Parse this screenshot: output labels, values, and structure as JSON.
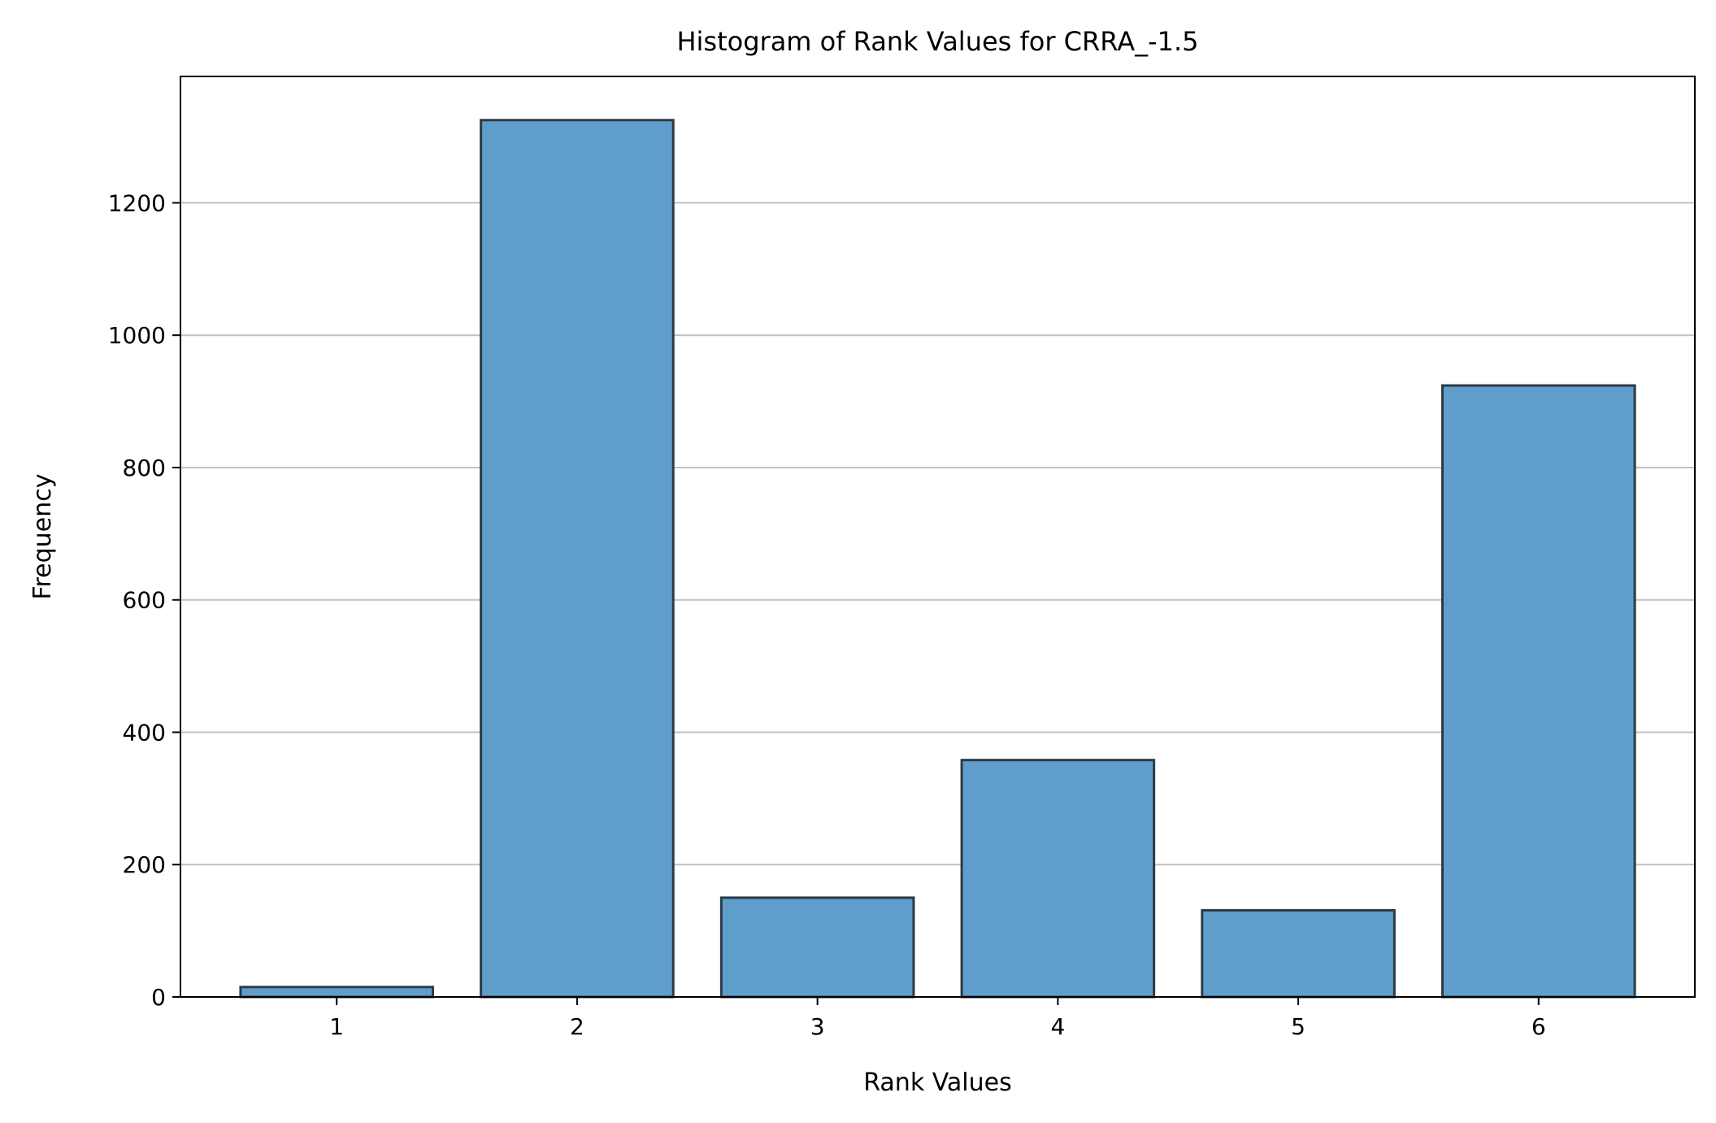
{
  "chart_data": {
    "type": "bar",
    "title": "Histogram of Rank Values for CRRA_-1.5",
    "xlabel": "Rank Values",
    "ylabel": "Frequency",
    "categories": [
      1,
      2,
      3,
      4,
      5,
      6
    ],
    "values": [
      15,
      1325,
      150,
      358,
      131,
      924
    ],
    "x_ticks": [
      "1",
      "2",
      "3",
      "4",
      "5",
      "6"
    ],
    "y_ticks": [
      0,
      200,
      400,
      600,
      800,
      1000,
      1200
    ],
    "ylim": [
      0,
      1391
    ],
    "xlim": [
      0.35,
      6.65
    ],
    "grid": "y",
    "colors": {
      "bar_fill": "#5f9ecb",
      "bar_edge": "#2d3a45",
      "grid": "#c0c0c0",
      "axis": "#000000"
    }
  }
}
